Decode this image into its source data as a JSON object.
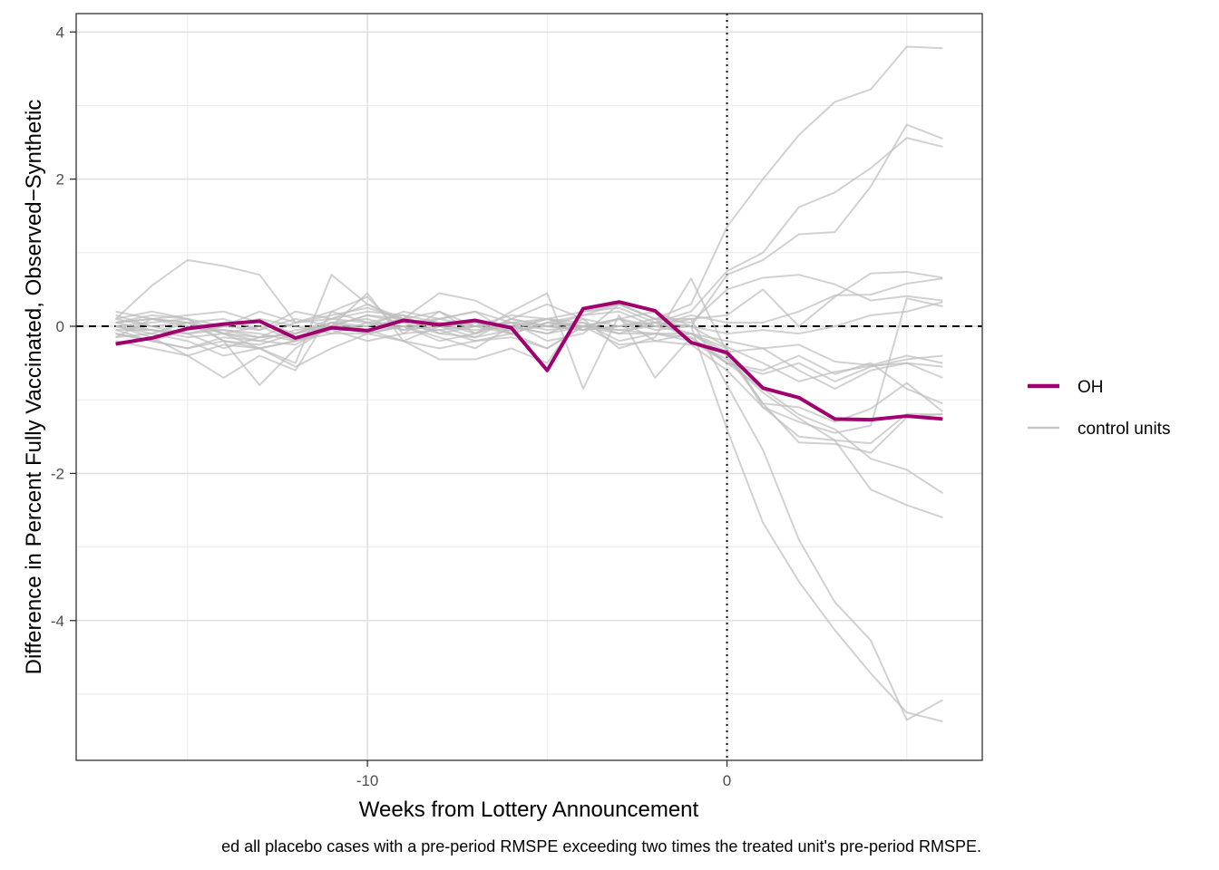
{
  "chart_data": {
    "type": "line",
    "xlabel": "Weeks from Lottery Announcement",
    "ylabel": "Difference in Percent Fully Vaccinated, Observed−Synthetic",
    "caption": "ed all placebo cases with a pre-period RMSPE exceeding two times the treated unit's pre-period RMSPE.",
    "xlim": [
      -18.1,
      7.1
    ],
    "ylim": [
      -5.9,
      4.25
    ],
    "x_ticks": [
      -10,
      0
    ],
    "x_tick_labels": [
      "-10",
      "0"
    ],
    "y_ticks": [
      -4,
      -2,
      0,
      2,
      4
    ],
    "y_tick_labels": [
      "-4",
      "-2",
      "0",
      "2",
      "4"
    ],
    "x_minor_gridlines": [
      -15,
      -5,
      5
    ],
    "y_minor_gridlines": [
      -5,
      -3,
      -1,
      1,
      3
    ],
    "grid": true,
    "hline": {
      "y": 0,
      "style": "dashed"
    },
    "vline": {
      "x": 0,
      "style": "dotted"
    },
    "legend": {
      "position": "right",
      "entries": [
        {
          "label": "OH",
          "color": "#A0006E"
        },
        {
          "label": "control units",
          "color": "#c8c8c8"
        }
      ]
    },
    "colors": {
      "treated": "#A0006E",
      "control": "#bdbdbd"
    },
    "x": [
      -17,
      -16,
      -15,
      -14,
      -13,
      -12,
      -11,
      -10,
      -9,
      -8,
      -7,
      -6,
      -5,
      -4,
      -3,
      -2,
      -1,
      0,
      1,
      2,
      3,
      4,
      5,
      6
    ],
    "treated": {
      "name": "OH",
      "values": [
        -0.24,
        -0.16,
        -0.03,
        0.03,
        0.07,
        -0.16,
        -0.02,
        -0.06,
        0.08,
        0.02,
        0.08,
        -0.02,
        -0.6,
        0.24,
        0.33,
        0.21,
        -0.22,
        -0.36,
        -0.84,
        -0.97,
        -1.26,
        -1.27,
        -1.22,
        -1.26
      ]
    },
    "control_series": [
      [
        0.1,
        0.55,
        0.9,
        0.82,
        0.7,
        0.05,
        0.2,
        0.05,
        0.15,
        -0.1,
        0.0,
        0.05,
        0.1,
        -0.05,
        0.0,
        0.1,
        0.3,
        1.35,
        2.0,
        2.6,
        3.05,
        3.22,
        3.8,
        3.78
      ],
      [
        0.2,
        0.1,
        0.15,
        0.2,
        0.05,
        -0.1,
        0.05,
        0.1,
        -0.05,
        0.0,
        0.05,
        0.0,
        -0.1,
        0.1,
        0.0,
        0.05,
        0.2,
        0.75,
        1.0,
        1.62,
        1.82,
        2.15,
        2.56,
        2.44
      ],
      [
        0.0,
        -0.1,
        0.05,
        -0.1,
        -0.15,
        0.05,
        0.15,
        0.25,
        0.1,
        0.0,
        -0.15,
        0.1,
        0.0,
        -0.05,
        0.1,
        0.2,
        0.0,
        0.7,
        0.9,
        1.25,
        1.28,
        1.9,
        2.74,
        2.55
      ],
      [
        -0.1,
        -0.2,
        -0.3,
        -0.15,
        -0.2,
        -0.05,
        0.0,
        0.0,
        0.2,
        0.1,
        0.2,
        0.05,
        -0.2,
        -0.1,
        0.3,
        0.1,
        0.05,
        0.5,
        0.66,
        0.7,
        0.57,
        0.35,
        0.41,
        0.35
      ],
      [
        0.15,
        0.0,
        -0.1,
        0.0,
        0.1,
        0.0,
        -0.1,
        0.05,
        0.0,
        -0.2,
        -0.1,
        0.1,
        0.0,
        0.15,
        0.2,
        0.0,
        0.1,
        0.15,
        0.5,
        0.0,
        0.4,
        0.72,
        0.74,
        0.66
      ],
      [
        0.05,
        0.1,
        0.0,
        -0.05,
        -0.1,
        -0.2,
        0.0,
        0.15,
        0.1,
        0.0,
        0.05,
        -0.1,
        0.05,
        0.0,
        -0.05,
        0.0,
        0.15,
        0.05,
        0.05,
        0.2,
        0.42,
        0.43,
        0.58,
        0.65
      ],
      [
        -0.05,
        -0.05,
        -0.1,
        -0.05,
        -0.15,
        -0.1,
        0.05,
        -0.05,
        0.0,
        0.05,
        -0.1,
        0.05,
        -0.05,
        0.0,
        0.1,
        -0.05,
        0.0,
        -0.1,
        -0.05,
        -0.1,
        0.0,
        0.15,
        0.2,
        0.33
      ],
      [
        -0.2,
        -0.3,
        -0.4,
        -0.25,
        -0.3,
        -0.55,
        -0.3,
        -0.1,
        -0.2,
        -0.3,
        -0.2,
        -0.1,
        -0.3,
        0.0,
        0.1,
        0.0,
        -0.1,
        -0.2,
        -0.3,
        -0.25,
        -0.48,
        -0.53,
        -0.4,
        -0.5
      ],
      [
        0.05,
        -0.05,
        -0.1,
        -0.3,
        -0.15,
        -0.1,
        0.1,
        0.05,
        -0.05,
        0.1,
        0.0,
        -0.1,
        0.05,
        0.0,
        -0.1,
        0.05,
        0.0,
        -0.28,
        -0.5,
        -0.75,
        -0.62,
        -0.54,
        -0.5,
        -0.7
      ],
      [
        -0.1,
        -0.2,
        -0.05,
        0.0,
        -0.05,
        0.1,
        0.0,
        -0.1,
        0.0,
        -0.05,
        0.0,
        0.05,
        0.0,
        -0.05,
        0.0,
        0.05,
        -0.1,
        -0.4,
        -1.05,
        -1.1,
        -1.3,
        -1.12,
        -0.77,
        -1.16
      ],
      [
        0.1,
        0.2,
        0.1,
        -0.1,
        0.0,
        -0.2,
        0.05,
        0.0,
        0.1,
        0.2,
        0.0,
        -0.05,
        0.1,
        0.05,
        -0.2,
        -0.1,
        -0.1,
        -0.3,
        -1.1,
        -1.3,
        -1.45,
        -1.35,
        0.38,
        0.27
      ],
      [
        0.0,
        0.05,
        0.1,
        -0.2,
        -0.25,
        -0.1,
        0.0,
        -0.05,
        -0.2,
        0.0,
        -0.05,
        0.0,
        -0.1,
        0.0,
        -0.05,
        -0.1,
        -0.2,
        -0.45,
        -0.9,
        -1.25,
        -1.55,
        -1.59,
        -1.19,
        -1.2
      ],
      [
        -0.15,
        -0.1,
        -0.2,
        -0.4,
        -0.3,
        -0.2,
        -0.05,
        -0.2,
        -0.1,
        -0.05,
        -0.2,
        -0.15,
        -0.3,
        0.0,
        0.1,
        -0.2,
        -0.1,
        -0.35,
        -1.05,
        -1.58,
        -1.6,
        -1.72,
        -1.24,
        -1.19
      ],
      [
        0.0,
        -0.05,
        -0.15,
        -0.1,
        -0.2,
        -0.25,
        0.0,
        0.15,
        0.05,
        -0.1,
        -0.15,
        -0.05,
        0.0,
        0.05,
        -0.1,
        -0.1,
        -0.15,
        -0.5,
        -0.85,
        -1.2,
        -1.4,
        -1.8,
        -1.95,
        -2.27
      ],
      [
        -0.05,
        -0.2,
        -0.3,
        -0.2,
        -0.3,
        -0.2,
        -0.1,
        -0.1,
        0.0,
        -0.15,
        -0.3,
        0.0,
        0.1,
        0.0,
        -0.25,
        -0.2,
        -0.25,
        -0.6,
        -1.1,
        -1.5,
        -1.55,
        -2.22,
        -2.43,
        -2.6
      ],
      [
        0.1,
        0.0,
        0.05,
        0.1,
        -0.05,
        0.2,
        0.1,
        0.3,
        0.05,
        0.1,
        0.2,
        -0.1,
        0.05,
        0.15,
        0.3,
        0.1,
        0.1,
        -0.8,
        -1.68,
        -2.9,
        -3.75,
        -4.27,
        -5.35,
        -5.08
      ],
      [
        0.05,
        0.15,
        0.1,
        0.0,
        0.2,
        0.05,
        0.1,
        0.2,
        0.15,
        0.05,
        0.0,
        0.15,
        0.1,
        0.2,
        0.25,
        0.05,
        0.0,
        -1.4,
        -2.67,
        -3.47,
        -4.13,
        -4.72,
        -5.25,
        -5.37
      ],
      [
        0.05,
        0.1,
        0.05,
        -0.1,
        -0.3,
        -0.5,
        0.7,
        0.3,
        0.1,
        0.45,
        0.35,
        0.1,
        0.3,
        0.1,
        -0.3,
        -0.15,
        0.65,
        -0.35,
        -0.3,
        -0.6,
        -0.85,
        -0.6,
        -0.5,
        -0.55
      ],
      [
        -0.15,
        0.1,
        0.05,
        -0.2,
        -0.8,
        -0.3,
        0.0,
        0.45,
        -0.2,
        -0.45,
        -0.45,
        -0.3,
        -0.5,
        0.2,
        0.3,
        0.1,
        -0.2,
        -0.5,
        -0.6,
        -0.4,
        -0.65,
        -0.5,
        -0.85,
        -1.05
      ],
      [
        0.0,
        -0.15,
        -0.4,
        -0.7,
        -0.4,
        -0.6,
        0.2,
        0.4,
        -0.1,
        0.2,
        -0.1,
        0.2,
        0.45,
        -0.85,
        0.15,
        -0.7,
        -0.15,
        -0.5,
        -0.65,
        -0.5,
        -0.75,
        -0.55,
        -0.45,
        -0.4
      ]
    ]
  }
}
